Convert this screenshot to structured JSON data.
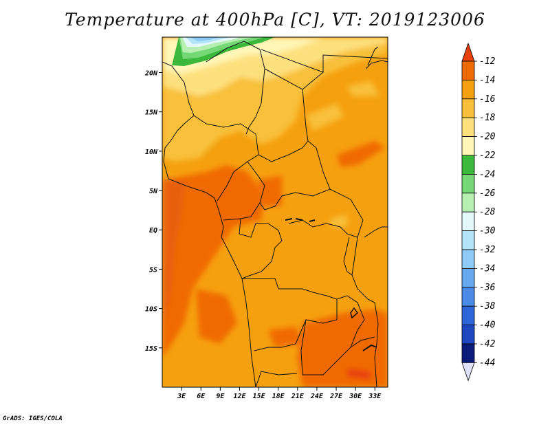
{
  "title": "Temperature at 400hPa [C], VT: 2019123006",
  "credit": "GrADS: IGES/COLA",
  "map": {
    "x_ticks": [
      "3E",
      "6E",
      "9E",
      "12E",
      "15E",
      "18E",
      "21E",
      "24E",
      "27E",
      "30E",
      "33E"
    ],
    "y_ticks": [
      "20N",
      "15N",
      "10N",
      "5N",
      "EQ",
      "5S",
      "10S",
      "15S"
    ],
    "lon_range": [
      0,
      35
    ],
    "lat_range": [
      -20,
      24.5
    ]
  },
  "colorbar": {
    "labels": [
      "-12",
      "-14",
      "-16",
      "-18",
      "-20",
      "-22",
      "-24",
      "-26",
      "-28",
      "-30",
      "-32",
      "-34",
      "-36",
      "-38",
      "-40",
      "-42",
      "-44"
    ],
    "colors": [
      "#e8410c",
      "#f06a05",
      "#f5a00f",
      "#f8c03a",
      "#fde07e",
      "#fff6b8",
      "#3cb93c",
      "#76d776",
      "#b7efb3",
      "#e4f8fa",
      "#b2e3f7",
      "#8fc9f5",
      "#69a9ee",
      "#4b8be6",
      "#2e66d9",
      "#1e46c1",
      "#0c1a7a",
      "#e0e0f8"
    ]
  }
}
